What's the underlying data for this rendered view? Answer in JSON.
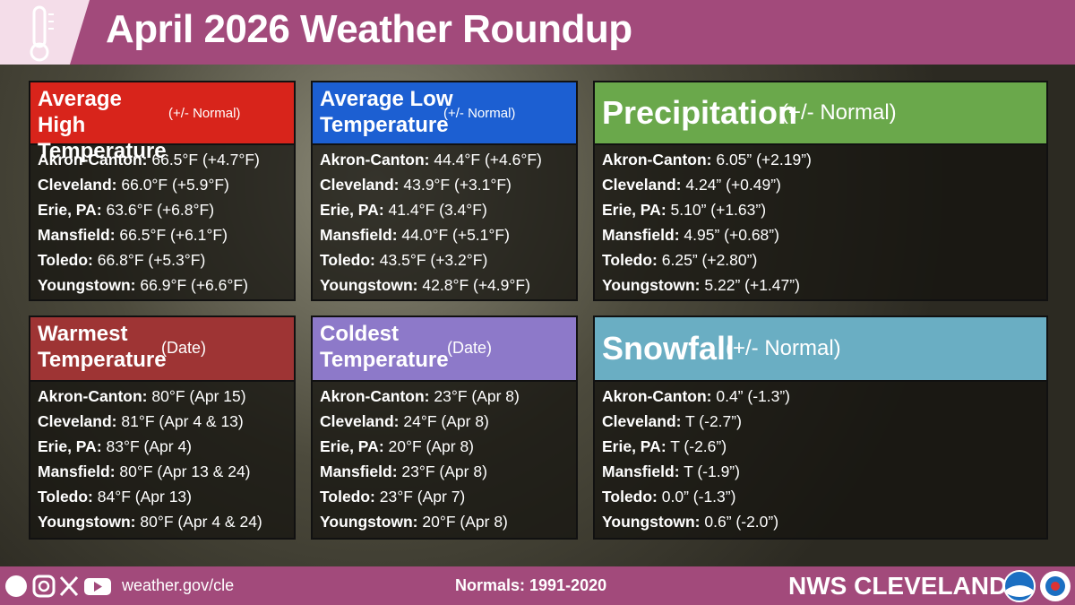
{
  "header": {
    "title": "April 2026 Weather Roundup"
  },
  "panels": [
    {
      "title": "Average High Temperature",
      "subtitle": "(+/- Normal)",
      "rows": [
        {
          "label": "Akron-Canton:",
          "value": "66.5°F (+4.7°F)"
        },
        {
          "label": "Cleveland:",
          "value": "66.0°F (+5.9°F)"
        },
        {
          "label": "Erie, PA:",
          "value": "63.6°F (+6.8°F)"
        },
        {
          "label": "Mansfield:",
          "value": "66.5°F (+6.1°F)"
        },
        {
          "label": "Toledo:",
          "value": "66.8°F (+5.3°F)"
        },
        {
          "label": "Youngstown:",
          "value": "66.9°F (+6.6°F)"
        }
      ]
    },
    {
      "title": "Average Low Temperature",
      "subtitle": "(+/- Normal)",
      "rows": [
        {
          "label": "Akron-Canton:",
          "value": "44.4°F (+4.6°F)"
        },
        {
          "label": "Cleveland:",
          "value": "43.9°F (+3.1°F)"
        },
        {
          "label": "Erie, PA:",
          "value": "41.4°F (3.4°F)"
        },
        {
          "label": "Mansfield:",
          "value": "44.0°F (+5.1°F)"
        },
        {
          "label": "Toledo:",
          "value": "43.5°F (+3.2°F)"
        },
        {
          "label": "Youngstown:",
          "value": "42.8°F (+4.9°F)"
        }
      ]
    },
    {
      "title": "Precipitation",
      "subtitle": "(+/- Normal)",
      "rows": [
        {
          "label": "Akron-Canton:",
          "value": "6.05” (+2.19”)"
        },
        {
          "label": "Cleveland:",
          "value": "4.24” (+0.49”)"
        },
        {
          "label": "Erie, PA:",
          "value": "5.10” (+1.63”)"
        },
        {
          "label": "Mansfield:",
          "value": "4.95” (+0.68”)"
        },
        {
          "label": "Toledo:",
          "value": "6.25” (+2.80”)"
        },
        {
          "label": "Youngstown:",
          "value": "5.22” (+1.47”)"
        }
      ]
    },
    {
      "title": "Warmest Temperature",
      "subtitle": "(Date)",
      "rows": [
        {
          "label": "Akron-Canton:",
          "value": "80°F (Apr 15)"
        },
        {
          "label": "Cleveland:",
          "value": "81°F (Apr 4 & 13)"
        },
        {
          "label": "Erie, PA:",
          "value": "83°F (Apr 4)"
        },
        {
          "label": "Mansfield:",
          "value": "80°F (Apr 13 & 24)"
        },
        {
          "label": "Toledo:",
          "value": "84°F (Apr 13)"
        },
        {
          "label": "Youngstown:",
          "value": "80°F (Apr 4 & 24)"
        }
      ]
    },
    {
      "title": "Coldest Temperature",
      "subtitle": "(Date)",
      "rows": [
        {
          "label": "Akron-Canton:",
          "value": "23°F (Apr 8)"
        },
        {
          "label": "Cleveland:",
          "value": "24°F (Apr 8)"
        },
        {
          "label": "Erie, PA:",
          "value": "20°F (Apr 8)"
        },
        {
          "label": "Mansfield:",
          "value": "23°F (Apr 8)"
        },
        {
          "label": "Toledo:",
          "value": "23°F (Apr 7)"
        },
        {
          "label": "Youngstown:",
          "value": "20°F (Apr 8)"
        }
      ]
    },
    {
      "title": "Snowfall",
      "subtitle": "(+/- Normal)",
      "rows": [
        {
          "label": "Akron-Canton:",
          "value": "0.4” (-1.3”)"
        },
        {
          "label": "Cleveland:",
          "value": "T (-2.7”)"
        },
        {
          "label": "Erie, PA:",
          "value": "T (-2.6”)"
        },
        {
          "label": "Mansfield:",
          "value": "T (-1.9”)"
        },
        {
          "label": "Toledo:",
          "value": "0.0” (-1.3”)"
        },
        {
          "label": "Youngstown:",
          "value": "0.6” (-2.0”)"
        }
      ]
    }
  ],
  "footer": {
    "website": "weather.gov/cle",
    "normals": "Normals: 1991-2020",
    "brand": "NWS CLEVELAND"
  }
}
